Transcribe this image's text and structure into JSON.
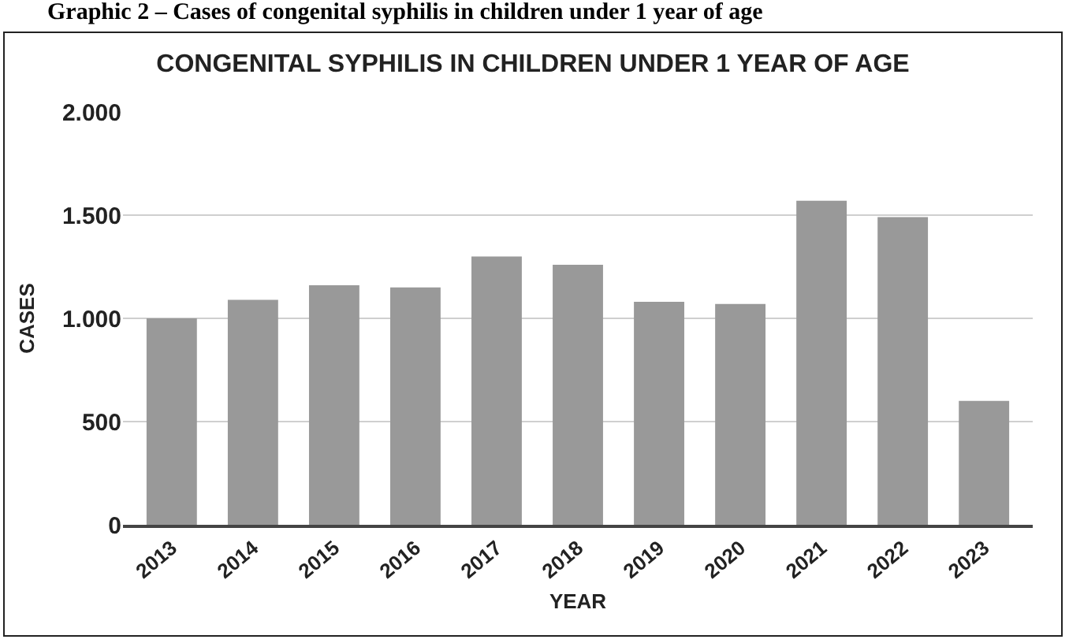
{
  "chart_data": {
    "type": "bar",
    "title": "CONGENITAL SYPHILIS IN CHILDREN UNDER 1 YEAR OF AGE",
    "xlabel": "YEAR",
    "ylabel": "CASES",
    "annotations": [
      "Graphic 2 – Cases of congenital syphilis in children under 1 year of age"
    ],
    "categories": [
      "2013",
      "2014",
      "2015",
      "2016",
      "2017",
      "2018",
      "2019",
      "2020",
      "2021",
      "2022",
      "2023"
    ],
    "values": [
      1000,
      1090,
      1160,
      1150,
      1300,
      1260,
      1080,
      1070,
      1570,
      1490,
      600
    ],
    "color": "#999999",
    "ylim": [
      0,
      2000
    ],
    "yticks": [
      0,
      500,
      {
        "value": 1000,
        "label": "1.000"
      },
      {
        "value": 1500,
        "label": "1.500"
      },
      {
        "value": 2000,
        "label": "2.000"
      }
    ],
    "grid": "y"
  }
}
